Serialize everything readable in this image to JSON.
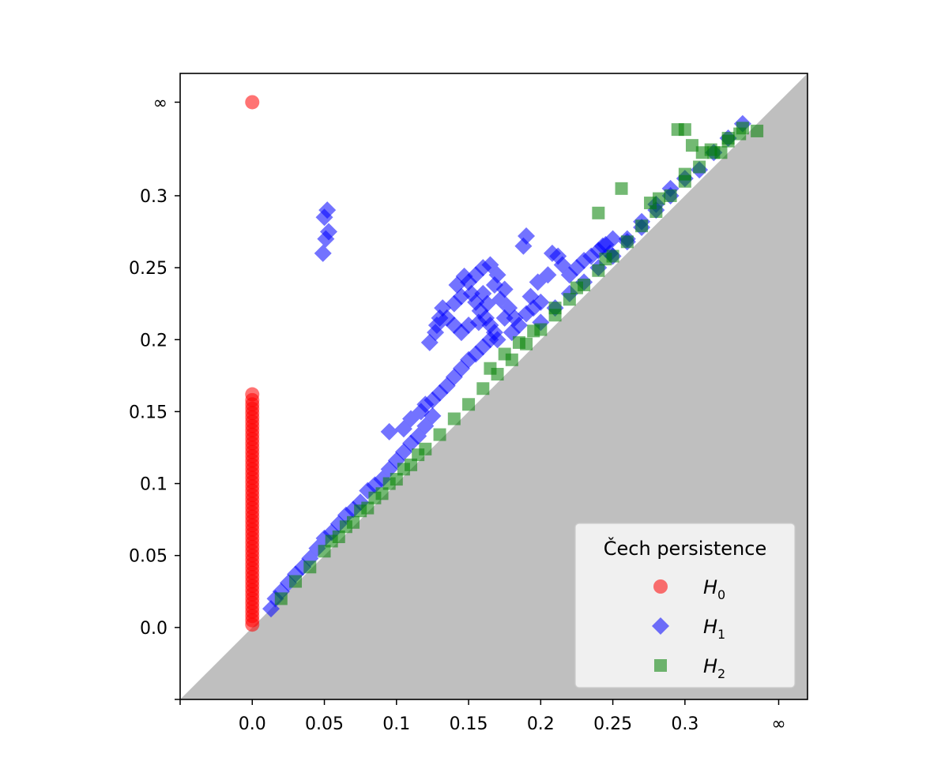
{
  "chart_data": {
    "type": "scatter",
    "title": "",
    "xlabel": "",
    "ylabel": "",
    "xlim": [
      -0.05,
      0.385
    ],
    "ylim": [
      -0.05,
      0.385
    ],
    "infinity_value": 0.365,
    "x_ticks": [
      {
        "value": -0.05,
        "label": ""
      },
      {
        "value": 0.0,
        "label": "0.0"
      },
      {
        "value": 0.05,
        "label": "0.05"
      },
      {
        "value": 0.1,
        "label": "0.1"
      },
      {
        "value": 0.15,
        "label": "0.15"
      },
      {
        "value": 0.2,
        "label": "0.2"
      },
      {
        "value": 0.25,
        "label": "0.25"
      },
      {
        "value": 0.3,
        "label": "0.3"
      },
      {
        "value": 0.365,
        "label": "∞"
      }
    ],
    "y_ticks": [
      {
        "value": -0.05,
        "label": ""
      },
      {
        "value": 0.0,
        "label": "0.0"
      },
      {
        "value": 0.05,
        "label": "0.05"
      },
      {
        "value": 0.1,
        "label": "0.1"
      },
      {
        "value": 0.15,
        "label": "0.15"
      },
      {
        "value": 0.2,
        "label": "0.2"
      },
      {
        "value": 0.25,
        "label": "0.25"
      },
      {
        "value": 0.3,
        "label": "0.3"
      },
      {
        "value": 0.365,
        "label": "∞"
      }
    ],
    "grid": false,
    "diagonal_shading": "#bfbfbf",
    "legend": {
      "title": "Čech persistence",
      "position": "bottom-right",
      "entries": [
        {
          "label": "H",
          "sub": "0",
          "series": 0
        },
        {
          "label": "H",
          "sub": "1",
          "series": 1
        },
        {
          "label": "H",
          "sub": "2",
          "series": 2
        }
      ]
    },
    "series": [
      {
        "name": "H0",
        "marker": "circle",
        "color": "#ff0000",
        "points": [
          [
            0,
            0.365
          ],
          [
            0,
            0.162
          ],
          [
            0,
            0.158
          ],
          [
            0,
            0.155
          ],
          [
            0,
            0.152
          ],
          [
            0,
            0.149
          ],
          [
            0,
            0.146
          ],
          [
            0,
            0.143
          ],
          [
            0,
            0.14
          ],
          [
            0,
            0.137
          ],
          [
            0,
            0.134
          ],
          [
            0,
            0.131
          ],
          [
            0,
            0.128
          ],
          [
            0,
            0.125
          ],
          [
            0,
            0.122
          ],
          [
            0,
            0.119
          ],
          [
            0,
            0.116
          ],
          [
            0,
            0.113
          ],
          [
            0,
            0.11
          ],
          [
            0,
            0.107
          ],
          [
            0,
            0.104
          ],
          [
            0,
            0.101
          ],
          [
            0,
            0.098
          ],
          [
            0,
            0.095
          ],
          [
            0,
            0.092
          ],
          [
            0,
            0.089
          ],
          [
            0,
            0.086
          ],
          [
            0,
            0.083
          ],
          [
            0,
            0.08
          ],
          [
            0,
            0.077
          ],
          [
            0,
            0.074
          ],
          [
            0,
            0.071
          ],
          [
            0,
            0.068
          ],
          [
            0,
            0.065
          ],
          [
            0,
            0.062
          ],
          [
            0,
            0.059
          ],
          [
            0,
            0.056
          ],
          [
            0,
            0.053
          ],
          [
            0,
            0.05
          ],
          [
            0,
            0.047
          ],
          [
            0,
            0.044
          ],
          [
            0,
            0.041
          ],
          [
            0,
            0.038
          ],
          [
            0,
            0.035
          ],
          [
            0,
            0.032
          ],
          [
            0,
            0.029
          ],
          [
            0,
            0.026
          ],
          [
            0,
            0.023
          ],
          [
            0,
            0.02
          ],
          [
            0,
            0.017
          ],
          [
            0,
            0.014
          ],
          [
            0,
            0.011
          ],
          [
            0,
            0.008
          ],
          [
            0,
            0.005
          ],
          [
            0,
            0.002
          ]
        ]
      },
      {
        "name": "H1",
        "marker": "diamond",
        "color": "#0000ff",
        "points": [
          [
            0.05,
            0.285
          ],
          [
            0.052,
            0.29
          ],
          [
            0.053,
            0.275
          ],
          [
            0.051,
            0.27
          ],
          [
            0.049,
            0.26
          ],
          [
            0.013,
            0.013
          ],
          [
            0.016,
            0.02
          ],
          [
            0.02,
            0.025
          ],
          [
            0.025,
            0.031
          ],
          [
            0.03,
            0.037
          ],
          [
            0.035,
            0.042
          ],
          [
            0.04,
            0.048
          ],
          [
            0.045,
            0.055
          ],
          [
            0.05,
            0.062
          ],
          [
            0.055,
            0.066
          ],
          [
            0.06,
            0.072
          ],
          [
            0.065,
            0.078
          ],
          [
            0.07,
            0.082
          ],
          [
            0.075,
            0.087
          ],
          [
            0.08,
            0.095
          ],
          [
            0.085,
            0.099
          ],
          [
            0.09,
            0.103
          ],
          [
            0.095,
            0.11
          ],
          [
            0.1,
            0.116
          ],
          [
            0.105,
            0.122
          ],
          [
            0.11,
            0.128
          ],
          [
            0.115,
            0.133
          ],
          [
            0.12,
            0.14
          ],
          [
            0.125,
            0.147
          ],
          [
            0.095,
            0.136
          ],
          [
            0.105,
            0.138
          ],
          [
            0.11,
            0.145
          ],
          [
            0.117,
            0.15
          ],
          [
            0.12,
            0.155
          ],
          [
            0.125,
            0.158
          ],
          [
            0.13,
            0.163
          ],
          [
            0.135,
            0.168
          ],
          [
            0.14,
            0.174
          ],
          [
            0.145,
            0.18
          ],
          [
            0.15,
            0.186
          ],
          [
            0.155,
            0.19
          ],
          [
            0.16,
            0.195
          ],
          [
            0.165,
            0.2
          ],
          [
            0.123,
            0.198
          ],
          [
            0.127,
            0.205
          ],
          [
            0.13,
            0.215
          ],
          [
            0.132,
            0.222
          ],
          [
            0.128,
            0.21
          ],
          [
            0.14,
            0.225
          ],
          [
            0.145,
            0.23
          ],
          [
            0.142,
            0.238
          ],
          [
            0.147,
            0.244
          ],
          [
            0.15,
            0.24
          ],
          [
            0.155,
            0.245
          ],
          [
            0.16,
            0.25
          ],
          [
            0.165,
            0.252
          ],
          [
            0.17,
            0.245
          ],
          [
            0.168,
            0.238
          ],
          [
            0.175,
            0.235
          ],
          [
            0.172,
            0.228
          ],
          [
            0.178,
            0.222
          ],
          [
            0.182,
            0.215
          ],
          [
            0.152,
            0.232
          ],
          [
            0.155,
            0.226
          ],
          [
            0.158,
            0.22
          ],
          [
            0.162,
            0.215
          ],
          [
            0.165,
            0.21
          ],
          [
            0.168,
            0.205
          ],
          [
            0.17,
            0.2
          ],
          [
            0.16,
            0.232
          ],
          [
            0.163,
            0.225
          ],
          [
            0.157,
            0.212
          ],
          [
            0.15,
            0.21
          ],
          [
            0.145,
            0.205
          ],
          [
            0.14,
            0.21
          ],
          [
            0.135,
            0.215
          ],
          [
            0.175,
            0.215
          ],
          [
            0.18,
            0.205
          ],
          [
            0.185,
            0.21
          ],
          [
            0.19,
            0.218
          ],
          [
            0.195,
            0.222
          ],
          [
            0.2,
            0.226
          ],
          [
            0.193,
            0.23
          ],
          [
            0.188,
            0.265
          ],
          [
            0.19,
            0.272
          ],
          [
            0.208,
            0.26
          ],
          [
            0.212,
            0.258
          ],
          [
            0.215,
            0.252
          ],
          [
            0.205,
            0.245
          ],
          [
            0.198,
            0.24
          ],
          [
            0.22,
            0.245
          ],
          [
            0.225,
            0.25
          ],
          [
            0.23,
            0.255
          ],
          [
            0.235,
            0.258
          ],
          [
            0.24,
            0.262
          ],
          [
            0.245,
            0.266
          ],
          [
            0.25,
            0.27
          ],
          [
            0.243,
            0.265
          ],
          [
            0.248,
            0.26
          ],
          [
            0.26,
            0.268
          ],
          [
            0.27,
            0.278
          ],
          [
            0.28,
            0.29
          ],
          [
            0.29,
            0.305
          ],
          [
            0.2,
            0.212
          ],
          [
            0.21,
            0.222
          ],
          [
            0.22,
            0.232
          ],
          [
            0.23,
            0.24
          ],
          [
            0.24,
            0.25
          ],
          [
            0.25,
            0.258
          ],
          [
            0.26,
            0.27
          ],
          [
            0.27,
            0.282
          ],
          [
            0.28,
            0.294
          ],
          [
            0.29,
            0.3
          ],
          [
            0.3,
            0.312
          ],
          [
            0.31,
            0.318
          ],
          [
            0.32,
            0.33
          ],
          [
            0.33,
            0.34
          ],
          [
            0.34,
            0.35
          ]
        ]
      },
      {
        "name": "H2",
        "marker": "square",
        "color": "#008000",
        "points": [
          [
            0.295,
            0.346
          ],
          [
            0.3,
            0.346
          ],
          [
            0.338,
            0.343
          ],
          [
            0.35,
            0.345
          ],
          [
            0.305,
            0.335
          ],
          [
            0.312,
            0.33
          ],
          [
            0.318,
            0.332
          ],
          [
            0.325,
            0.33
          ],
          [
            0.33,
            0.338
          ],
          [
            0.3,
            0.315
          ],
          [
            0.256,
            0.305
          ],
          [
            0.24,
            0.288
          ],
          [
            0.276,
            0.295
          ],
          [
            0.282,
            0.298
          ],
          [
            0.02,
            0.02
          ],
          [
            0.03,
            0.032
          ],
          [
            0.04,
            0.042
          ],
          [
            0.05,
            0.053
          ],
          [
            0.06,
            0.063
          ],
          [
            0.07,
            0.073
          ],
          [
            0.08,
            0.083
          ],
          [
            0.09,
            0.093
          ],
          [
            0.1,
            0.103
          ],
          [
            0.11,
            0.113
          ],
          [
            0.12,
            0.124
          ],
          [
            0.13,
            0.134
          ],
          [
            0.14,
            0.145
          ],
          [
            0.15,
            0.155
          ],
          [
            0.16,
            0.166
          ],
          [
            0.17,
            0.176
          ],
          [
            0.18,
            0.186
          ],
          [
            0.19,
            0.197
          ],
          [
            0.2,
            0.207
          ],
          [
            0.21,
            0.217
          ],
          [
            0.22,
            0.228
          ],
          [
            0.23,
            0.238
          ],
          [
            0.24,
            0.248
          ],
          [
            0.25,
            0.258
          ],
          [
            0.26,
            0.268
          ],
          [
            0.27,
            0.279
          ],
          [
            0.28,
            0.289
          ],
          [
            0.29,
            0.3
          ],
          [
            0.3,
            0.31
          ],
          [
            0.31,
            0.32
          ],
          [
            0.32,
            0.33
          ],
          [
            0.33,
            0.34
          ],
          [
            0.34,
            0.347
          ],
          [
            0.165,
            0.18
          ],
          [
            0.175,
            0.19
          ],
          [
            0.185,
            0.198
          ],
          [
            0.195,
            0.206
          ],
          [
            0.21,
            0.222
          ],
          [
            0.225,
            0.236
          ],
          [
            0.245,
            0.256
          ],
          [
            0.055,
            0.06
          ],
          [
            0.065,
            0.07
          ],
          [
            0.075,
            0.081
          ],
          [
            0.085,
            0.09
          ],
          [
            0.095,
            0.1
          ],
          [
            0.105,
            0.11
          ],
          [
            0.115,
            0.12
          ]
        ]
      }
    ]
  }
}
